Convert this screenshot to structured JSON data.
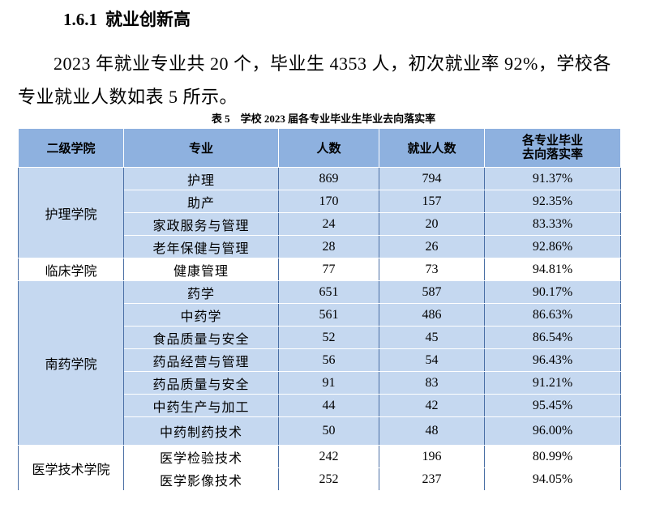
{
  "header": {
    "section": "1.6.1",
    "title": "就业创新高"
  },
  "paragraph": "2023 年就业专业共 20 个，毕业生 4353 人，初次就业率 92%，学校各专业就业人数如表 5 所示。",
  "table": {
    "caption": "表 5　学校 2023 届各专业毕业生毕业去向落实率",
    "columns": [
      "二级学院",
      "专业",
      "人数",
      "就业人数",
      "各专业毕业去向落实率"
    ],
    "groups": [
      {
        "college": "护理学院",
        "rows": [
          [
            "护理",
            869,
            794,
            "91.37%"
          ],
          [
            "助产",
            170,
            157,
            "92.35%"
          ],
          [
            "家政服务与管理",
            24,
            20,
            "83.33%"
          ],
          [
            "老年保健与管理",
            28,
            26,
            "92.86%"
          ]
        ]
      },
      {
        "college": "临床学院",
        "rows": [
          [
            "健康管理",
            77,
            73,
            "94.81%"
          ]
        ]
      },
      {
        "college": "南药学院",
        "rows": [
          [
            "药学",
            651,
            587,
            "90.17%"
          ],
          [
            "中药学",
            561,
            486,
            "86.63%"
          ],
          [
            "食品质量与安全",
            52,
            45,
            "86.54%"
          ],
          [
            "药品经营与管理",
            56,
            54,
            "96.43%"
          ],
          [
            "药品质量与安全",
            91,
            83,
            "91.21%"
          ],
          [
            "中药生产与加工",
            44,
            42,
            "95.45%"
          ],
          [
            "中药制药技术",
            50,
            48,
            "96.00%"
          ]
        ]
      },
      {
        "college": "医学技术学院",
        "rows": [
          [
            "医学检验技术",
            242,
            196,
            "80.99%"
          ],
          [
            "医学影像技术",
            252,
            237,
            "94.05%"
          ]
        ]
      }
    ]
  }
}
